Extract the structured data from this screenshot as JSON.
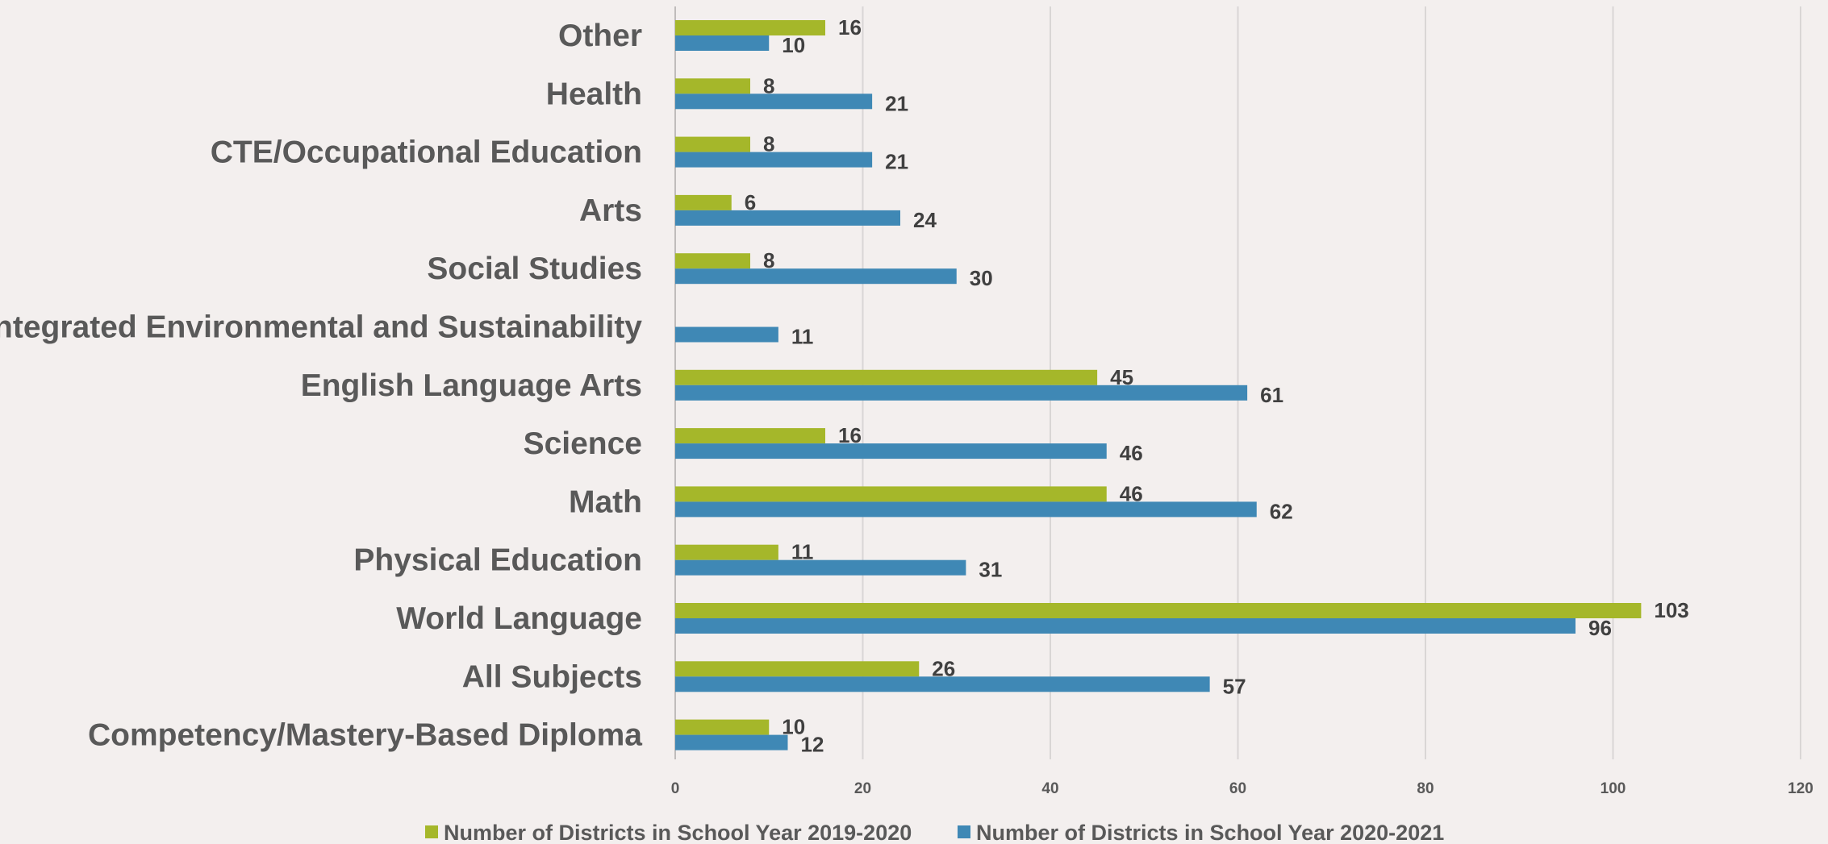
{
  "chart_data": {
    "type": "bar",
    "orientation": "horizontal",
    "categories": [
      "Other",
      "Health",
      "CTE/Occupational Education",
      "Arts",
      "Social Studies",
      "Integrated Environmental and Sustainability",
      "English Language Arts",
      "Science",
      "Math",
      "Physical Education",
      "World Language",
      "All Subjects",
      "Competency/Mastery-Based Diploma"
    ],
    "series": [
      {
        "name": "Number of Districts in School Year 2019-2020",
        "color": "#a5b72a",
        "values": [
          16,
          8,
          8,
          6,
          8,
          null,
          45,
          16,
          46,
          11,
          103,
          26,
          10
        ]
      },
      {
        "name": "Number of Districts in School Year 2020-2021",
        "color": "#3f88b5",
        "values": [
          10,
          21,
          21,
          24,
          30,
          11,
          61,
          46,
          62,
          31,
          96,
          57,
          12
        ]
      }
    ],
    "x_ticks": [
      "0",
      "20",
      "40",
      "60",
      "80",
      "100",
      "120"
    ],
    "xlim": [
      0,
      120
    ],
    "grid": true,
    "data_labels": true,
    "legend_position": "bottom",
    "title": "",
    "xlabel": "",
    "ylabel": ""
  }
}
